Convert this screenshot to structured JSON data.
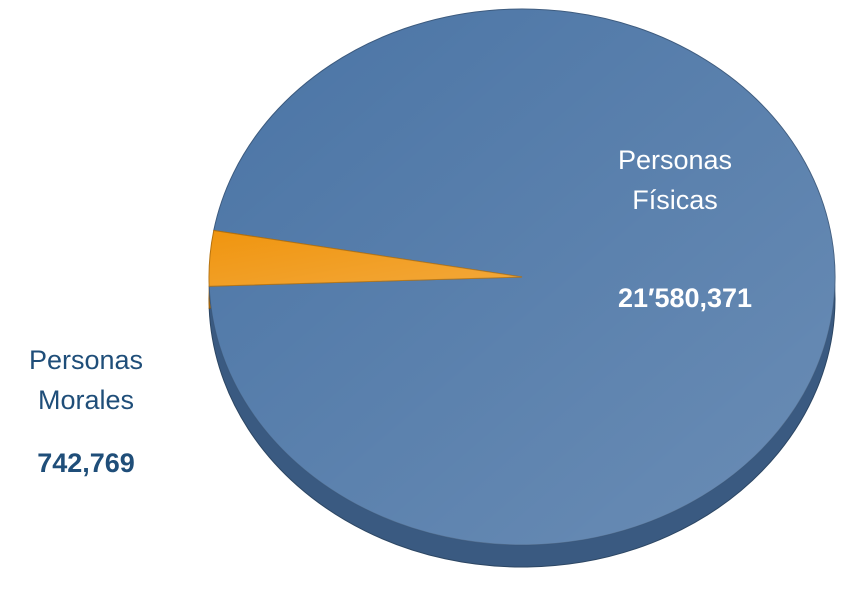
{
  "chart_data": {
    "type": "pie",
    "categories": [
      "Personas Físicas",
      "Personas Morales"
    ],
    "values": [
      21580371,
      742769
    ],
    "value_labels": [
      "21′580,371",
      "742,769"
    ],
    "colors": [
      "#4a74a5",
      "#f0950f"
    ]
  }
}
